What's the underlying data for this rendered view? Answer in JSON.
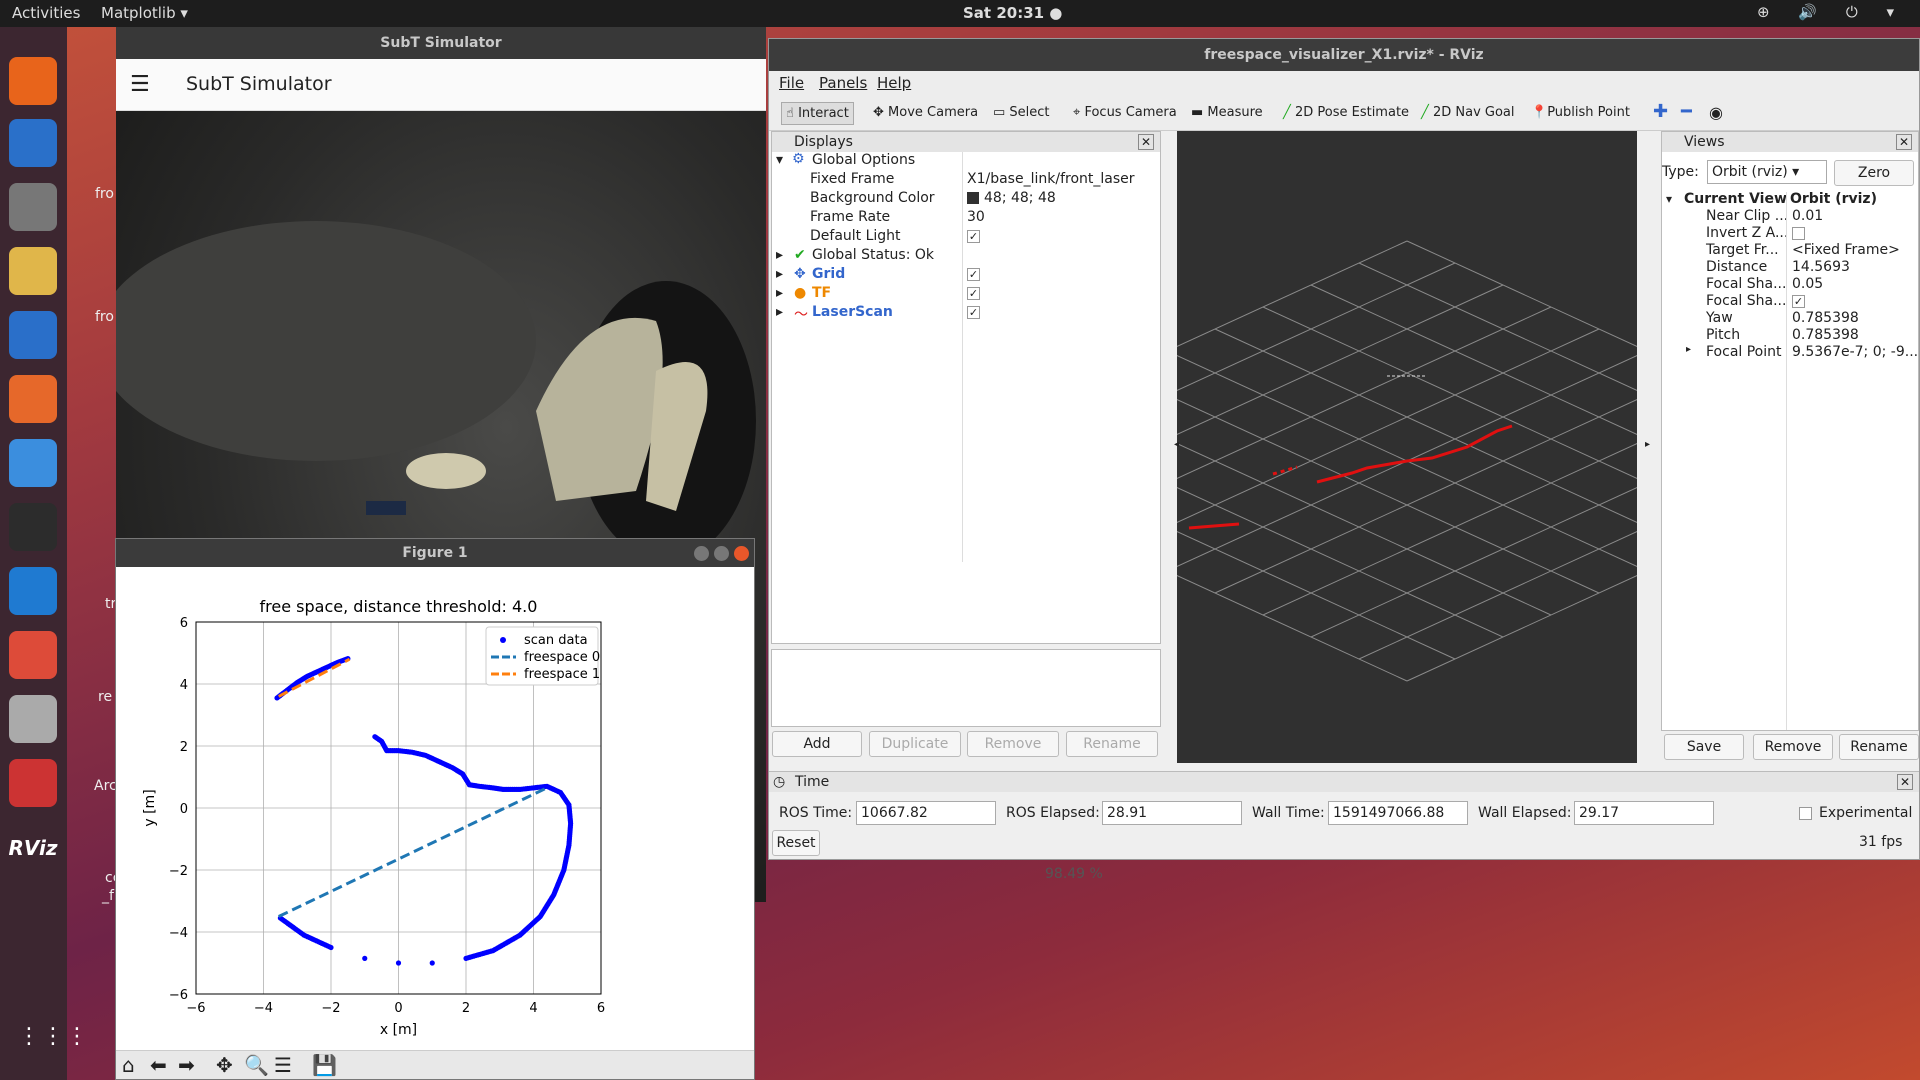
{
  "topbar": {
    "activities": "Activities",
    "app_menu": "Matplotlib ▾",
    "clock": "Sat 20:31 ●",
    "tray": "⊕ 🔊 ⏻ ▾"
  },
  "dock": {
    "items": [
      {
        "icon": "firefox-icon",
        "color": "#e8641b"
      },
      {
        "icon": "mail-icon",
        "color": "#2a70c9"
      },
      {
        "icon": "files-icon",
        "color": "#777"
      },
      {
        "icon": "rhythmbox-icon",
        "color": "#e0b64a"
      },
      {
        "icon": "writer-icon",
        "color": "#2a6fc9"
      },
      {
        "icon": "software-icon",
        "color": "#e6682a"
      },
      {
        "icon": "help-icon",
        "color": "#3b8ede"
      },
      {
        "icon": "terminal-icon",
        "color": "#2c2c2c"
      },
      {
        "icon": "vscode-icon",
        "color": "#1f7ad1"
      },
      {
        "icon": "chrome-icon",
        "color": "#dd4b39"
      },
      {
        "icon": "gazebo-icon",
        "color": "#aaa"
      },
      {
        "icon": "matplotlib-icon",
        "color": "#c33"
      },
      {
        "icon": "rviz-icon",
        "color": "#333"
      }
    ],
    "rviz_label": "RViz",
    "grid": "⋮⋮⋮"
  },
  "desktop_labels": [
    "fro",
    "fro",
    "tr",
    "re",
    "Arc",
    "cc",
    "_f"
  ],
  "subt": {
    "title": "SubT Simulator",
    "app_title": "SubT Simulator",
    "menu_icon": "☰",
    "status": "98.49 %"
  },
  "rviz": {
    "title": "freespace_visualizer_X1.rviz* - RViz",
    "menu": [
      "File",
      "Panels",
      "Help"
    ],
    "tools": [
      "Interact",
      "Move Camera",
      "Select",
      "Focus Camera",
      "Measure",
      "2D Pose Estimate",
      "2D Nav Goal",
      "Publish Point"
    ],
    "displays": {
      "header": "Displays",
      "global_options": "Global Options",
      "props": [
        {
          "k": "Fixed Frame",
          "v": "X1/base_link/front_laser"
        },
        {
          "k": "Background Color",
          "v": "48; 48; 48"
        },
        {
          "k": "Frame Rate",
          "v": "30"
        },
        {
          "k": "Default Light",
          "v": ""
        }
      ],
      "status": "Global Status: Ok",
      "items": [
        "Grid",
        "TF",
        "LaserScan"
      ],
      "buttons": [
        "Add",
        "Duplicate",
        "Remove",
        "Rename"
      ]
    },
    "views": {
      "header": "Views",
      "type_label": "Type:",
      "type_value": "Orbit (rviz)",
      "zero": "Zero",
      "current_view": "Current View",
      "current_type": "Orbit (rviz)",
      "props": [
        {
          "k": "Near Clip ...",
          "v": "0.01"
        },
        {
          "k": "Invert Z A...",
          "v": ""
        },
        {
          "k": "Target Fr...",
          "v": "<Fixed Frame>"
        },
        {
          "k": "Distance",
          "v": "14.5693"
        },
        {
          "k": "Focal Sha...",
          "v": "0.05"
        },
        {
          "k": "Focal Sha...",
          "v": ""
        },
        {
          "k": "Yaw",
          "v": "0.785398"
        },
        {
          "k": "Pitch",
          "v": "0.785398"
        },
        {
          "k": "Focal Point",
          "v": "9.5367e-7; 0; -9..."
        }
      ],
      "buttons": [
        "Save",
        "Remove",
        "Rename"
      ]
    },
    "time": {
      "header": "Time",
      "ros_time_label": "ROS Time:",
      "ros_time": "10667.82",
      "ros_elapsed_label": "ROS Elapsed:",
      "ros_elapsed": "28.91",
      "wall_time_label": "Wall Time:",
      "wall_time": "1591497066.88",
      "wall_elapsed_label": "Wall Elapsed:",
      "wall_elapsed": "29.17",
      "experimental": "Experimental",
      "reset": "Reset",
      "fps": "31 fps"
    }
  },
  "figure": {
    "window_title": "Figure 1",
    "toolbar": [
      "home-icon",
      "back-icon",
      "forward-icon",
      "pan-icon",
      "zoom-icon",
      "configure-icon",
      "save-icon"
    ],
    "chart_data": {
      "type": "scatter",
      "title": "free space, distance threshold: 4.0",
      "xlabel": "x [m]",
      "ylabel": "y [m]",
      "xlim": [
        -6,
        6
      ],
      "ylim": [
        -6,
        6
      ],
      "xticks": [
        "−6",
        "−4",
        "−2",
        "0",
        "2",
        "4",
        "6"
      ],
      "yticks": [
        "−6",
        "−4",
        "−2",
        "0",
        "2",
        "4",
        "6"
      ],
      "grid": true,
      "legend_position": "top-right",
      "series": [
        {
          "name": "scan data",
          "kind": "points",
          "color": "#0000ff",
          "points": [
            [
              -3.6,
              3.55
            ],
            [
              -3.3,
              3.8
            ],
            [
              -3.0,
              4.05
            ],
            [
              -2.7,
              4.25
            ],
            [
              -2.4,
              4.4
            ],
            [
              -2.1,
              4.55
            ],
            [
              -1.8,
              4.7
            ],
            [
              -1.5,
              4.82
            ],
            [
              -0.7,
              2.3
            ],
            [
              -0.5,
              2.15
            ],
            [
              -0.35,
              1.85
            ],
            [
              0.0,
              1.85
            ],
            [
              0.4,
              1.8
            ],
            [
              0.8,
              1.7
            ],
            [
              1.2,
              1.5
            ],
            [
              1.6,
              1.3
            ],
            [
              1.9,
              1.1
            ],
            [
              2.1,
              0.75
            ],
            [
              2.4,
              0.7
            ],
            [
              2.8,
              0.65
            ],
            [
              3.1,
              0.6
            ],
            [
              3.6,
              0.6
            ],
            [
              4.4,
              0.7
            ],
            [
              4.8,
              0.5
            ],
            [
              5.05,
              0.1
            ],
            [
              5.1,
              -0.5
            ],
            [
              5.05,
              -1.2
            ],
            [
              4.9,
              -2.0
            ],
            [
              4.6,
              -2.8
            ],
            [
              4.2,
              -3.5
            ],
            [
              3.6,
              -4.1
            ],
            [
              2.8,
              -4.6
            ],
            [
              2.0,
              -4.85
            ],
            [
              1.0,
              -5.0
            ],
            [
              0.0,
              -5.0
            ],
            [
              -1.0,
              -4.85
            ],
            [
              -2.0,
              -4.5
            ],
            [
              -2.8,
              -4.1
            ],
            [
              -3.5,
              -3.55
            ]
          ]
        },
        {
          "name": "freespace 0",
          "kind": "dashed-line",
          "color": "#1f77b4",
          "points": [
            [
              -3.55,
              -3.5
            ],
            [
              4.4,
              0.65
            ]
          ]
        },
        {
          "name": "freespace 1",
          "kind": "dashed-line",
          "color": "#ff7f0e",
          "points": [
            [
              -3.55,
              3.6
            ],
            [
              -1.45,
              4.8
            ]
          ]
        }
      ]
    }
  }
}
